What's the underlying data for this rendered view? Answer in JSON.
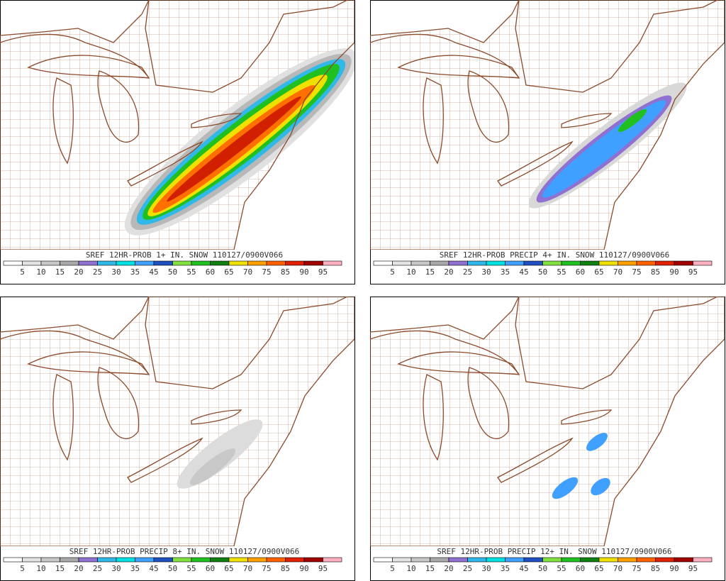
{
  "panels": [
    {
      "title": "SREF 12HR-PROB 1+ IN. SNOW 110127/0900V066",
      "colorbar_labels": [
        "5",
        "10",
        "15",
        "20",
        "25",
        "30",
        "35",
        "45",
        "50",
        "55",
        "60",
        "65",
        "70",
        "75",
        "85",
        "90",
        "95"
      ]
    },
    {
      "title": "SREF 12HR-PROB PRECIP 4+ IN. SNOW 110127/0900V066",
      "colorbar_labels": [
        "5",
        "10",
        "15",
        "20",
        "25",
        "30",
        "35",
        "45",
        "50",
        "55",
        "60",
        "65",
        "70",
        "75",
        "85",
        "90",
        "95"
      ]
    },
    {
      "title": "SREF 12HR-PROB PRECIP 8+ IN. SNOW 110127/0900V066",
      "colorbar_labels": [
        "5",
        "10",
        "15",
        "20",
        "25",
        "30",
        "35",
        "45",
        "50",
        "55",
        "60",
        "65",
        "70",
        "75",
        "85",
        "90",
        "95"
      ]
    },
    {
      "title": "SREF 12HR-PROB PRECIP 12+ IN. SNOW 110127/0900V066",
      "colorbar_labels": [
        "5",
        "10",
        "15",
        "20",
        "25",
        "30",
        "35",
        "45",
        "50",
        "55",
        "60",
        "65",
        "70",
        "75",
        "85",
        "90",
        "95"
      ]
    }
  ],
  "colorbar_colors": [
    "#ffffff",
    "#e4e4e4",
    "#c8c8c8",
    "#a8a8a8",
    "#9070d0",
    "#30b8e8",
    "#00e0e0",
    "#40a0ff",
    "#2050c0",
    "#80e040",
    "#20c020",
    "#108010",
    "#f0e000",
    "#ffa000",
    "#ff6000",
    "#e02000",
    "#a00000",
    "#ffb0c0"
  ]
}
